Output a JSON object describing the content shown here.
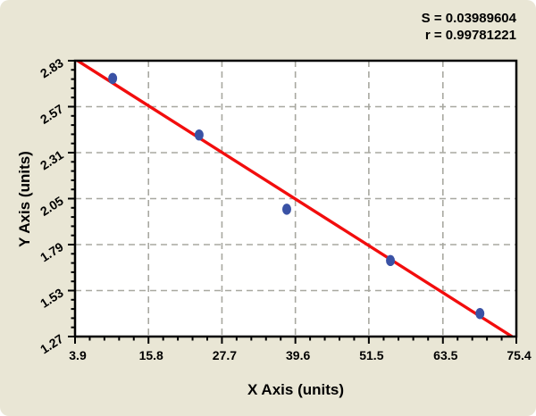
{
  "stats": {
    "s_value": "S = 0.03989604",
    "r_value": "r = 0.99781221"
  },
  "chart_data": {
    "type": "scatter",
    "title": "",
    "xlabel": "X Axis (units)",
    "ylabel": "Y Axis (units)",
    "xlim": [
      3.9,
      75.4
    ],
    "ylim": [
      1.27,
      2.83
    ],
    "x_ticks": [
      "3.9",
      "15.8",
      "27.7",
      "39.6",
      "51.5",
      "63.5",
      "75.4"
    ],
    "y_ticks": [
      "1.27",
      "1.53",
      "1.79",
      "2.05",
      "2.31",
      "2.57",
      "2.83"
    ],
    "minor_divisions_per_major": 5,
    "grid": "dashed gridlines at every major tick",
    "legend_position": "none",
    "points": [
      {
        "x": 10.0,
        "y": 2.73
      },
      {
        "x": 24.0,
        "y": 2.41
      },
      {
        "x": 38.2,
        "y": 1.99
      },
      {
        "x": 55.0,
        "y": 1.7
      },
      {
        "x": 69.5,
        "y": 1.4
      }
    ],
    "fit_line": {
      "x1": 4.3,
      "y1": 2.83,
      "x2": 74.7,
      "y2": 1.27,
      "slope": -0.0222,
      "intercept": 2.926
    },
    "colors": {
      "background": "#E9E6D5",
      "plot_background": "#FFFFFF",
      "fit_line": "#F20D0D",
      "marker": "#3A52A5",
      "grid": "#A8A8A0",
      "axis": "#000000",
      "text": "#000000"
    }
  }
}
